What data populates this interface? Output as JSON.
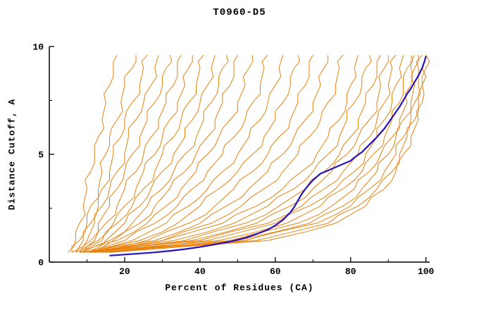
{
  "chart_data": {
    "type": "line",
    "title": "T0960-D5",
    "xlabel": "Percent of Residues (CA)",
    "ylabel": "Distance Cutoff, A",
    "xlim": [
      0,
      101
    ],
    "ylim": [
      0,
      10
    ],
    "xticks": [
      20,
      40,
      60,
      80,
      100
    ],
    "xticks_minor": [
      10,
      30,
      50,
      70,
      90
    ],
    "yticks": [
      0,
      5,
      10
    ],
    "yticks_minor": [
      2.5,
      7.5
    ],
    "grid": false,
    "legend": null,
    "colors": {
      "models": "#e8820c",
      "highlight": "#2a10b8",
      "axis": "#000000",
      "background": "#ffffff"
    },
    "y_levels": [
      0.45,
      1.0,
      1.8,
      2.6,
      3.4,
      4.2,
      5.0,
      5.8,
      6.6,
      7.4,
      8.2,
      9.0,
      9.6
    ],
    "models": [
      {
        "x": [
          5,
          7,
          8,
          9,
          10,
          11,
          12,
          13,
          14,
          15,
          16,
          17,
          18
        ]
      },
      {
        "x": [
          6,
          8,
          10,
          11,
          13,
          14,
          15,
          16,
          18,
          19,
          20,
          22,
          23
        ]
      },
      {
        "x": [
          7,
          9,
          11,
          13,
          14,
          16,
          17,
          19,
          20,
          22,
          24,
          25,
          26
        ]
      },
      {
        "x": [
          6,
          10,
          12,
          14,
          16,
          18,
          20,
          21,
          23,
          25,
          27,
          28,
          29
        ]
      },
      {
        "x": [
          8,
          11,
          13,
          16,
          18,
          20,
          22,
          24,
          26,
          28,
          30,
          31,
          32
        ]
      },
      {
        "x": [
          7,
          12,
          15,
          18,
          20,
          23,
          25,
          27,
          29,
          31,
          33,
          34,
          35
        ]
      },
      {
        "x": [
          9,
          13,
          17,
          20,
          23,
          25,
          28,
          30,
          32,
          34,
          36,
          37,
          38
        ]
      },
      {
        "x": [
          8,
          14,
          18,
          22,
          25,
          28,
          30,
          33,
          35,
          37,
          39,
          40,
          41
        ]
      },
      {
        "x": [
          10,
          15,
          20,
          24,
          27,
          30,
          33,
          36,
          38,
          40,
          42,
          43,
          44
        ]
      },
      {
        "x": [
          9,
          16,
          22,
          26,
          30,
          33,
          36,
          39,
          41,
          43,
          45,
          46,
          47
        ]
      },
      {
        "x": [
          11,
          17,
          24,
          28,
          32,
          36,
          39,
          42,
          44,
          46,
          48,
          49,
          50
        ]
      },
      {
        "x": [
          8,
          18,
          26,
          31,
          35,
          39,
          42,
          45,
          48,
          50,
          52,
          53,
          54
        ]
      },
      {
        "x": [
          10,
          20,
          28,
          34,
          38,
          42,
          46,
          49,
          52,
          54,
          56,
          57,
          58
        ]
      },
      {
        "x": [
          9,
          22,
          31,
          37,
          42,
          46,
          50,
          53,
          56,
          58,
          60,
          61,
          62
        ]
      },
      {
        "x": [
          11,
          24,
          34,
          40,
          45,
          50,
          54,
          57,
          60,
          62,
          64,
          65,
          66
        ]
      },
      {
        "x": [
          12,
          26,
          37,
          44,
          49,
          54,
          58,
          61,
          64,
          66,
          68,
          69,
          70
        ]
      },
      {
        "x": [
          10,
          28,
          40,
          47,
          53,
          58,
          62,
          65,
          68,
          70,
          72,
          73,
          74
        ]
      },
      {
        "x": [
          13,
          30,
          43,
          51,
          57,
          62,
          66,
          69,
          72,
          74,
          76,
          77,
          78
        ]
      },
      {
        "x": [
          9,
          30,
          46,
          55,
          62,
          67,
          71,
          74,
          77,
          79,
          80,
          81,
          82
        ]
      },
      {
        "x": [
          11,
          33,
          49,
          58,
          65,
          70,
          74,
          77,
          79,
          81,
          83,
          84,
          85
        ]
      },
      {
        "x": [
          10,
          36,
          52,
          61,
          68,
          73,
          77,
          80,
          82,
          84,
          86,
          87,
          88
        ]
      },
      {
        "x": [
          12,
          38,
          55,
          64,
          70,
          75,
          79,
          82,
          85,
          87,
          88,
          89,
          90
        ]
      },
      {
        "x": [
          8,
          40,
          58,
          67,
          73,
          78,
          82,
          85,
          87,
          89,
          90,
          91,
          92
        ]
      },
      {
        "x": [
          13,
          42,
          60,
          69,
          76,
          81,
          84,
          87,
          89,
          91,
          92,
          93,
          94
        ]
      },
      {
        "x": [
          10,
          45,
          63,
          72,
          78,
          83,
          86,
          89,
          91,
          93,
          94,
          95,
          96
        ]
      },
      {
        "x": [
          14,
          48,
          66,
          75,
          81,
          85,
          88,
          91,
          93,
          95,
          96,
          96,
          97
        ]
      },
      {
        "x": [
          12,
          50,
          69,
          78,
          83,
          87,
          90,
          92,
          94,
          96,
          97,
          97,
          98
        ]
      },
      {
        "x": [
          15,
          52,
          71,
          80,
          85,
          89,
          92,
          94,
          96,
          97,
          98,
          98,
          99
        ]
      },
      {
        "x": [
          11,
          55,
          74,
          82,
          87,
          91,
          93,
          95,
          97,
          98,
          99,
          99,
          100
        ]
      },
      {
        "x": [
          16,
          58,
          76,
          84,
          89,
          92,
          94,
          96,
          98,
          99,
          99,
          100,
          100
        ]
      }
    ],
    "highlight": {
      "name": "best-model",
      "width": 2.2,
      "points": [
        [
          16,
          0.3
        ],
        [
          20,
          0.35
        ],
        [
          24,
          0.4
        ],
        [
          28,
          0.45
        ],
        [
          32,
          0.52
        ],
        [
          36,
          0.6
        ],
        [
          40,
          0.7
        ],
        [
          44,
          0.82
        ],
        [
          48,
          0.95
        ],
        [
          52,
          1.12
        ],
        [
          55,
          1.3
        ],
        [
          58,
          1.5
        ],
        [
          60,
          1.7
        ],
        [
          62,
          1.95
        ],
        [
          64,
          2.3
        ],
        [
          65,
          2.55
        ],
        [
          66,
          2.85
        ],
        [
          67,
          3.15
        ],
        [
          68,
          3.4
        ],
        [
          69,
          3.6
        ],
        [
          70,
          3.8
        ],
        [
          71,
          3.95
        ],
        [
          72,
          4.1
        ],
        [
          74,
          4.25
        ],
        [
          76,
          4.4
        ],
        [
          78,
          4.55
        ],
        [
          80,
          4.7
        ],
        [
          81,
          4.85
        ],
        [
          83,
          5.1
        ],
        [
          85,
          5.45
        ],
        [
          87,
          5.8
        ],
        [
          89,
          6.2
        ],
        [
          90,
          6.45
        ],
        [
          91,
          6.7
        ],
        [
          92,
          6.95
        ],
        [
          93,
          7.2
        ],
        [
          94,
          7.5
        ],
        [
          95,
          7.8
        ],
        [
          96,
          8.05
        ],
        [
          97,
          8.35
        ],
        [
          98,
          8.65
        ],
        [
          99,
          9.0
        ],
        [
          99.6,
          9.3
        ],
        [
          100,
          9.55
        ]
      ]
    }
  }
}
